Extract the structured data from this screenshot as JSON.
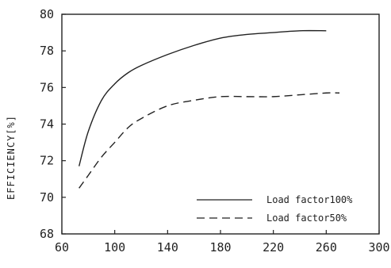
{
  "chart_data": {
    "type": "line",
    "title": "",
    "xlabel": "",
    "ylabel": "EFFICIENCY[%]",
    "xlim": [
      60,
      300
    ],
    "ylim": [
      68,
      80
    ],
    "x_ticks": [
      "60",
      "100",
      "140",
      "180",
      "220",
      "260",
      "300"
    ],
    "y_ticks": [
      "68",
      "70",
      "72",
      "74",
      "76",
      "78",
      "80"
    ],
    "grid": false,
    "legend_position": "bottom-right",
    "series": [
      {
        "name": "Load factor100%",
        "line_style": "solid",
        "color": "#222222",
        "x": [
          73,
          80,
          90,
          100,
          110,
          120,
          140,
          160,
          180,
          200,
          220,
          240,
          260
        ],
        "y": [
          71.7,
          73.6,
          75.3,
          76.2,
          76.8,
          77.2,
          77.8,
          78.3,
          78.7,
          78.9,
          79.0,
          79.1,
          79.1
        ]
      },
      {
        "name": "Load factor50%",
        "line_style": "dashed",
        "color": "#222222",
        "x": [
          73,
          80,
          90,
          100,
          110,
          120,
          140,
          160,
          180,
          200,
          220,
          240,
          260,
          270
        ],
        "y": [
          70.5,
          71.2,
          72.2,
          73.0,
          73.8,
          74.3,
          75.0,
          75.3,
          75.5,
          75.5,
          75.5,
          75.6,
          75.7,
          75.7
        ]
      }
    ]
  }
}
